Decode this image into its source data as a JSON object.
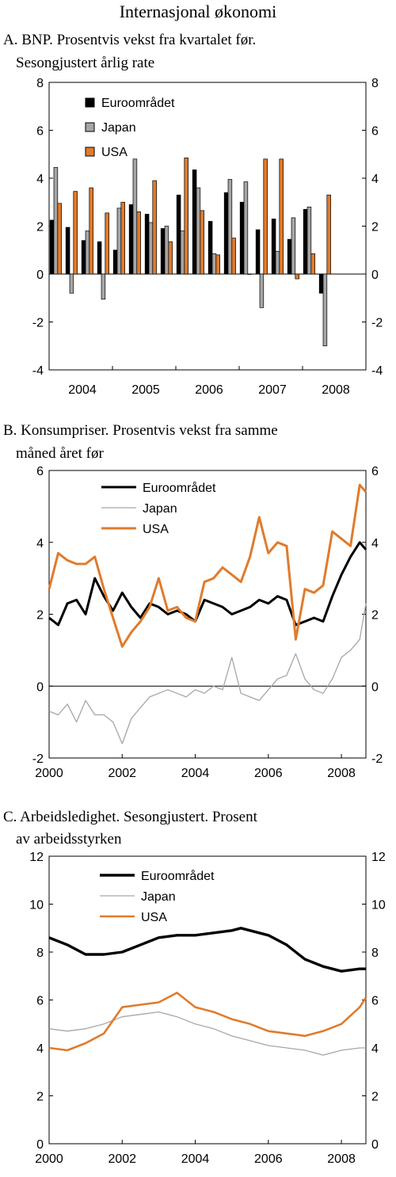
{
  "page_title": "Internasjonal økonomi",
  "colors": {
    "euro": "#000000",
    "japan": "#a6a6a6",
    "usa": "#e07b2c",
    "axis": "#000000"
  },
  "chart_data": [
    {
      "id": "gdp",
      "type": "bar",
      "title_line1": "A. BNP. Prosentvis vekst fra kvartalet før.",
      "title_line2": "Sesongjustert årlig rate",
      "ylim": [
        -4,
        8
      ],
      "yticks": [
        -4,
        -2,
        0,
        2,
        4,
        6,
        8
      ],
      "xticks": [
        "2004",
        "2005",
        "2006",
        "2007",
        "2008"
      ],
      "categories": [
        "2004Q1",
        "2004Q2",
        "2004Q3",
        "2004Q4",
        "2005Q1",
        "2005Q2",
        "2005Q3",
        "2005Q4",
        "2006Q1",
        "2006Q2",
        "2006Q3",
        "2006Q4",
        "2007Q1",
        "2007Q2",
        "2007Q3",
        "2007Q4",
        "2008Q1",
        "2008Q2",
        "2008Q3"
      ],
      "series": [
        {
          "name": "Euroområdet",
          "values": [
            2.25,
            1.95,
            1.4,
            1.35,
            1.0,
            2.9,
            2.5,
            1.9,
            3.3,
            4.35,
            2.2,
            3.4,
            3.0,
            1.85,
            2.3,
            1.45,
            2.7,
            -0.8,
            null
          ]
        },
        {
          "name": "Japan",
          "values": [
            4.45,
            -0.8,
            1.8,
            -1.05,
            2.75,
            4.8,
            2.15,
            2.0,
            1.8,
            3.6,
            0.85,
            3.95,
            3.85,
            -1.4,
            0.95,
            2.35,
            2.8,
            -3.0,
            null
          ]
        },
        {
          "name": "USA",
          "values": [
            2.95,
            3.45,
            3.6,
            2.55,
            3.0,
            2.6,
            3.9,
            1.35,
            4.85,
            2.65,
            0.8,
            1.5,
            0.0,
            4.8,
            4.8,
            -0.2,
            0.85,
            3.3,
            null
          ]
        }
      ]
    },
    {
      "id": "cpi",
      "type": "line",
      "title_line1": "B. Konsumpriser. Prosentvis vekst fra samme",
      "title_line2": "måned året før",
      "ylim": [
        -2,
        6
      ],
      "yticks": [
        -2,
        0,
        2,
        4,
        6
      ],
      "xlim": [
        2000,
        2008.67
      ],
      "xticks": [
        2000,
        2002,
        2004,
        2006,
        2008
      ],
      "series": [
        {
          "name": "Euroområdet",
          "width": 3,
          "x": [
            2000,
            2000.25,
            2000.5,
            2000.75,
            2001,
            2001.25,
            2001.5,
            2001.75,
            2002,
            2002.25,
            2002.5,
            2002.75,
            2003,
            2003.25,
            2003.5,
            2003.75,
            2004,
            2004.25,
            2004.5,
            2004.75,
            2005,
            2005.25,
            2005.5,
            2005.75,
            2006,
            2006.25,
            2006.5,
            2006.75,
            2007,
            2007.25,
            2007.5,
            2007.75,
            2008,
            2008.25,
            2008.5,
            2008.67
          ],
          "y": [
            1.9,
            1.7,
            2.3,
            2.4,
            2.0,
            3.0,
            2.5,
            2.1,
            2.6,
            2.2,
            1.9,
            2.3,
            2.2,
            2.0,
            2.1,
            2.0,
            1.8,
            2.4,
            2.3,
            2.2,
            2.0,
            2.1,
            2.2,
            2.4,
            2.3,
            2.5,
            2.4,
            1.7,
            1.8,
            1.9,
            1.8,
            2.5,
            3.1,
            3.6,
            4.0,
            3.8
          ]
        },
        {
          "name": "Japan",
          "width": 1.3,
          "x": [
            2000,
            2000.25,
            2000.5,
            2000.75,
            2001,
            2001.25,
            2001.5,
            2001.75,
            2002,
            2002.25,
            2002.5,
            2002.75,
            2003,
            2003.25,
            2003.5,
            2003.75,
            2004,
            2004.25,
            2004.5,
            2004.75,
            2005,
            2005.25,
            2005.5,
            2005.75,
            2006,
            2006.25,
            2006.5,
            2006.75,
            2007,
            2007.25,
            2007.5,
            2007.75,
            2008,
            2008.25,
            2008.5,
            2008.67
          ],
          "y": [
            -0.7,
            -0.8,
            -0.5,
            -1.0,
            -0.4,
            -0.8,
            -0.8,
            -1.0,
            -1.6,
            -0.9,
            -0.6,
            -0.3,
            -0.2,
            -0.1,
            -0.2,
            -0.3,
            -0.1,
            -0.2,
            0.0,
            -0.1,
            0.8,
            -0.2,
            -0.3,
            -0.4,
            -0.1,
            0.2,
            0.3,
            0.9,
            0.2,
            -0.1,
            -0.2,
            0.2,
            0.8,
            1.0,
            1.3,
            2.3
          ]
        },
        {
          "name": "USA",
          "width": 3,
          "x": [
            2000,
            2000.25,
            2000.5,
            2000.75,
            2001,
            2001.25,
            2001.5,
            2001.75,
            2002,
            2002.25,
            2002.5,
            2002.75,
            2003,
            2003.25,
            2003.5,
            2003.75,
            2004,
            2004.25,
            2004.5,
            2004.75,
            2005,
            2005.25,
            2005.5,
            2005.75,
            2006,
            2006.25,
            2006.5,
            2006.75,
            2007,
            2007.25,
            2007.5,
            2007.75,
            2008,
            2008.25,
            2008.5,
            2008.67
          ],
          "y": [
            2.7,
            3.7,
            3.5,
            3.4,
            3.4,
            3.6,
            2.7,
            1.9,
            1.1,
            1.5,
            1.8,
            2.2,
            3.0,
            2.1,
            2.2,
            1.9,
            1.8,
            2.9,
            3.0,
            3.3,
            3.1,
            2.9,
            3.6,
            4.7,
            3.7,
            4.0,
            3.9,
            1.3,
            2.7,
            2.6,
            2.8,
            4.3,
            4.1,
            3.9,
            5.6,
            5.4
          ]
        }
      ]
    },
    {
      "id": "unemployment",
      "type": "line",
      "title_line1": "C. Arbeidsledighet. Sesongjustert. Prosent",
      "title_line2": "av arbeidsstyrken",
      "ylim": [
        0,
        12
      ],
      "yticks": [
        0,
        2,
        4,
        6,
        8,
        10,
        12
      ],
      "xlim": [
        2000,
        2008.67
      ],
      "xticks": [
        2000,
        2002,
        2004,
        2006,
        2008
      ],
      "series": [
        {
          "name": "Euroområdet",
          "width": 3.4,
          "x": [
            2000,
            2000.5,
            2001,
            2001.5,
            2002,
            2002.5,
            2003,
            2003.5,
            2004,
            2004.5,
            2005,
            2005.25,
            2005.5,
            2006,
            2006.5,
            2007,
            2007.5,
            2008,
            2008.5,
            2008.67
          ],
          "y": [
            8.6,
            8.3,
            7.9,
            7.9,
            8.0,
            8.3,
            8.6,
            8.7,
            8.7,
            8.8,
            8.9,
            9.0,
            8.9,
            8.7,
            8.3,
            7.7,
            7.4,
            7.2,
            7.3,
            7.3
          ]
        },
        {
          "name": "Japan",
          "width": 1.3,
          "x": [
            2000,
            2000.5,
            2001,
            2001.5,
            2002,
            2002.5,
            2003,
            2003.5,
            2004,
            2004.5,
            2005,
            2005.5,
            2006,
            2006.5,
            2007,
            2007.5,
            2008,
            2008.5,
            2008.67
          ],
          "y": [
            4.8,
            4.7,
            4.8,
            5.0,
            5.3,
            5.4,
            5.5,
            5.3,
            5.0,
            4.8,
            4.5,
            4.3,
            4.1,
            4.0,
            3.9,
            3.7,
            3.9,
            4.0,
            4.0
          ]
        },
        {
          "name": "USA",
          "width": 2.6,
          "x": [
            2000,
            2000.5,
            2001,
            2001.5,
            2002,
            2002.5,
            2003,
            2003.5,
            2004,
            2004.5,
            2005,
            2005.5,
            2006,
            2006.5,
            2007,
            2007.5,
            2008,
            2008.5,
            2008.67
          ],
          "y": [
            4.0,
            3.9,
            4.2,
            4.6,
            5.7,
            5.8,
            5.9,
            6.3,
            5.7,
            5.5,
            5.2,
            5.0,
            4.7,
            4.6,
            4.5,
            4.7,
            5.0,
            5.7,
            6.1
          ]
        }
      ]
    }
  ]
}
